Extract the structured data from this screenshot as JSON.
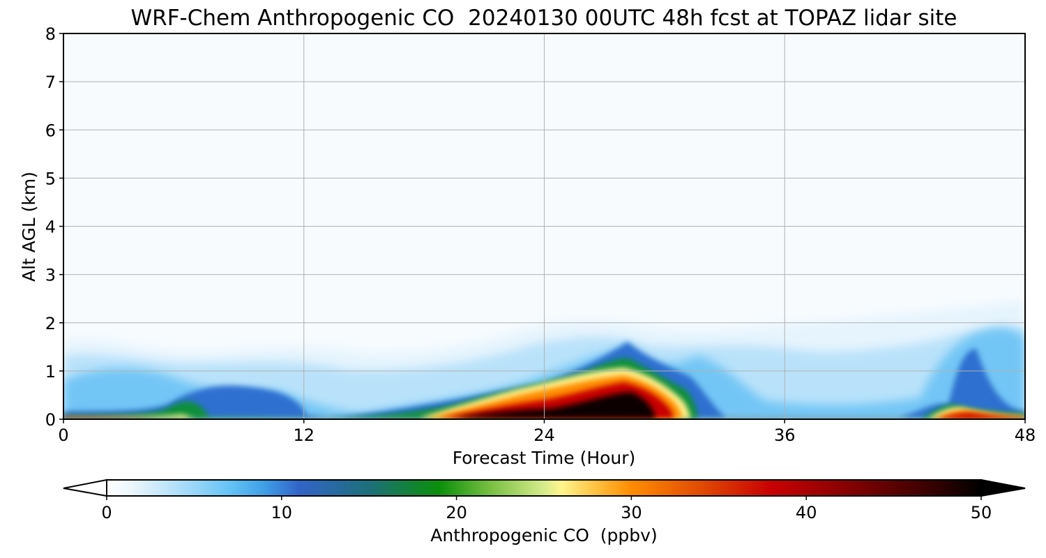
{
  "chart_data": {
    "type": "heatmap",
    "title": "WRF-Chem Anthropogenic CO  20240130 00UTC 48h fcst at TOPAZ lidar site",
    "xlabel": "Forecast Time (Hour)",
    "ylabel": "Alt AGL (km)",
    "xlim": [
      0,
      48
    ],
    "ylim": [
      0,
      8
    ],
    "x_ticks": [
      "0",
      "12",
      "24",
      "36",
      "48"
    ],
    "y_ticks": [
      "0",
      "1",
      "2",
      "3",
      "4",
      "5",
      "6",
      "7",
      "8"
    ],
    "grid": true,
    "colorbar": {
      "label": "Anthropogenic CO  (ppbv)",
      "range": [
        0,
        50
      ],
      "extend": "both",
      "ticks": [
        "0",
        "10",
        "20",
        "30",
        "40",
        "50"
      ],
      "colors": [
        "#ffffff",
        "#eaf5fd",
        "#c9e9fb",
        "#9ad6f8",
        "#66c3f5",
        "#3f9fe6",
        "#3264c8",
        "#1e6f7a",
        "#0a8f0a",
        "#7ac043",
        "#d6eb8c",
        "#fff58c",
        "#ffc040",
        "#ff8c00",
        "#e04a00",
        "#c80000",
        "#8b0000",
        "#3a0000",
        "#000000"
      ],
      "color_positions": [
        0,
        1.5,
        3,
        5,
        7,
        9,
        11,
        15,
        19,
        22,
        25,
        26,
        28,
        30,
        34,
        38,
        42,
        47,
        50
      ]
    },
    "field_description_points": [
      {
        "t": 0,
        "top_km": 1.4
      },
      {
        "t": 3,
        "top_km": 1.3
      },
      {
        "t": 6,
        "top_km": 1.1
      },
      {
        "t": 9,
        "top_km": 1.1
      },
      {
        "t": 12,
        "top_km": 1.3
      },
      {
        "t": 15,
        "top_km": 1.2
      },
      {
        "t": 18,
        "top_km": 1.3
      },
      {
        "t": 21,
        "top_km": 1.6
      },
      {
        "t": 24,
        "top_km": 1.8
      },
      {
        "t": 27,
        "top_km": 2.0
      },
      {
        "t": 30,
        "top_km": 1.7
      },
      {
        "t": 33,
        "top_km": 1.8
      },
      {
        "t": 36,
        "top_km": 1.9
      },
      {
        "t": 39,
        "top_km": 1.6
      },
      {
        "t": 42,
        "top_km": 1.8
      },
      {
        "t": 45,
        "top_km": 2.2
      },
      {
        "t": 48,
        "top_km": 2.4
      }
    ]
  }
}
